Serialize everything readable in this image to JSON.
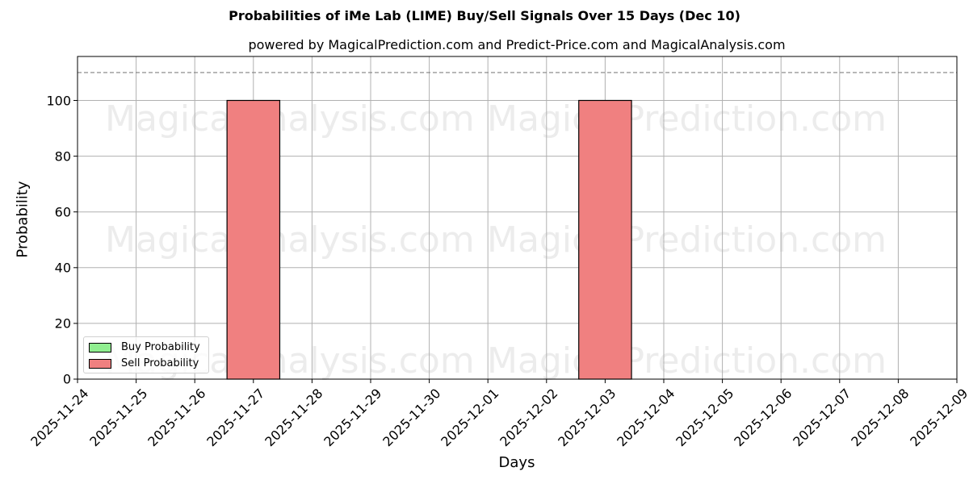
{
  "header": {
    "title": "Probabilities of iMe Lab (LIME) Buy/Sell Signals Over 15 Days (Dec 10)",
    "subtitle": "powered by MagicalPrediction.com and Predict-Price.com and MagicalAnalysis.com"
  },
  "axes": {
    "xlabel": "Days",
    "ylabel": "Probability",
    "yticks": [
      "0",
      "20",
      "40",
      "60",
      "80",
      "100"
    ],
    "xticks": [
      "2025-11-24",
      "2025-11-25",
      "2025-11-26",
      "2025-11-27",
      "2025-11-28",
      "2025-11-29",
      "2025-11-30",
      "2025-12-01",
      "2025-12-02",
      "2025-12-03",
      "2025-12-04",
      "2025-12-05",
      "2025-12-06",
      "2025-12-07",
      "2025-12-08",
      "2025-12-09"
    ]
  },
  "legend": {
    "buy_label": "Buy Probability",
    "sell_label": "Sell Probability",
    "buy_color": "#90ee90",
    "sell_color": "#f08080"
  },
  "watermarks": {
    "analysis": "MagicalAnalysis.com",
    "prediction": "MagicalPrediction.com"
  },
  "chart_data": {
    "type": "bar",
    "title": "Probabilities of iMe Lab (LIME) Buy/Sell Signals Over 15 Days (Dec 10)",
    "subtitle": "powered by MagicalPrediction.com and Predict-Price.com and MagicalAnalysis.com",
    "xlabel": "Days",
    "ylabel": "Probability",
    "ylim": [
      0,
      115
    ],
    "reference_line": {
      "y": 110,
      "style": "dashed",
      "color": "#808080"
    },
    "categories": [
      "2025-11-24",
      "2025-11-25",
      "2025-11-26",
      "2025-11-27",
      "2025-11-28",
      "2025-11-29",
      "2025-11-30",
      "2025-12-01",
      "2025-12-02",
      "2025-12-03",
      "2025-12-04",
      "2025-12-05",
      "2025-12-06",
      "2025-12-07",
      "2025-12-08",
      "2025-12-09"
    ],
    "series": [
      {
        "name": "Buy Probability",
        "color": "#90ee90",
        "values": [
          0,
          0,
          0,
          0,
          0,
          0,
          0,
          0,
          0,
          0,
          0,
          0,
          0,
          0,
          0,
          0
        ]
      },
      {
        "name": "Sell Probability",
        "color": "#f08080",
        "values": [
          0,
          0,
          0,
          100,
          0,
          0,
          0,
          0,
          0,
          100,
          0,
          0,
          0,
          0,
          0,
          0
        ]
      }
    ],
    "grid": true,
    "legend_position": "lower left"
  }
}
